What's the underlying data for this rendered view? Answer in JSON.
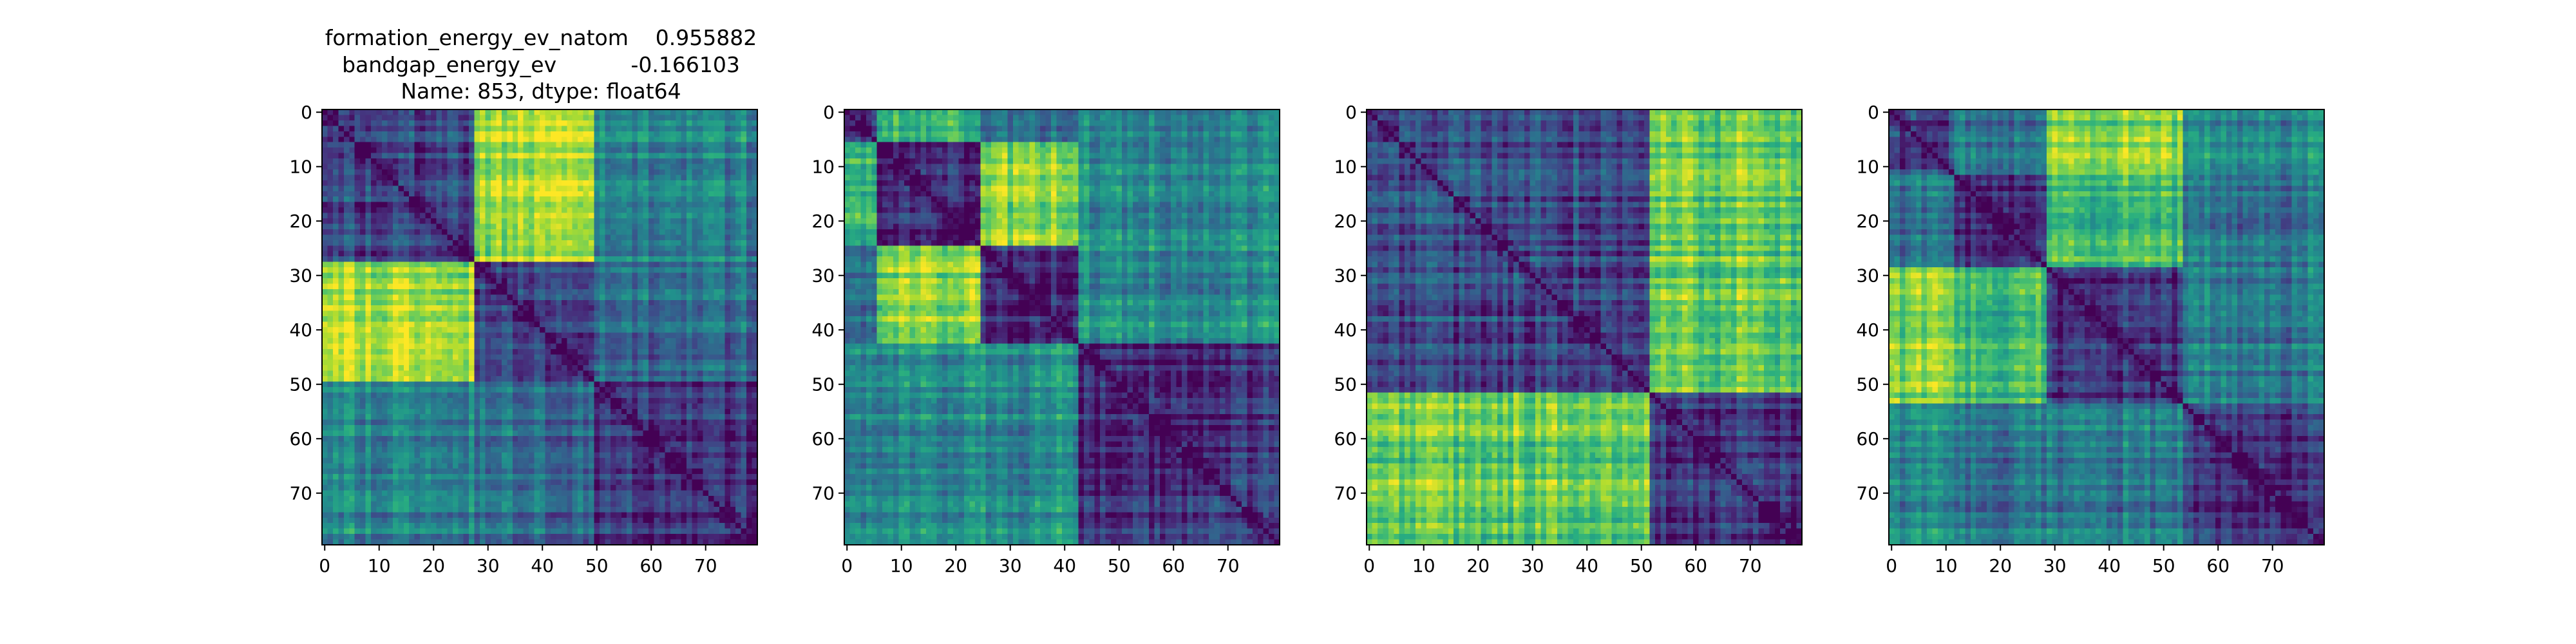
{
  "figure": {
    "title_lines": [
      "formation_energy_ev_natom    0.955882",
      "bandgap_energy_ev           -0.166103",
      "Name: 853, dtype: float64"
    ]
  },
  "colormap": [
    "#440154",
    "#472d7b",
    "#3b528b",
    "#2c728e",
    "#21918c",
    "#28ae80",
    "#5ec962",
    "#addc30",
    "#fde725"
  ],
  "chart_data": [
    {
      "type": "heatmap",
      "size": 80,
      "value_range": [
        0,
        1
      ],
      "cluster_boundaries": [
        0,
        28,
        50,
        80
      ],
      "cluster_block_levels": [
        [
          0.2,
          0.85,
          0.45
        ],
        [
          0.85,
          0.15,
          0.35
        ],
        [
          0.45,
          0.35,
          0.15
        ]
      ],
      "xticks": [
        0,
        10,
        20,
        30,
        40,
        50,
        60,
        70
      ],
      "yticks": [
        0,
        10,
        20,
        30,
        40,
        50,
        60,
        70
      ],
      "title": ""
    },
    {
      "type": "heatmap",
      "size": 80,
      "value_range": [
        0,
        1
      ],
      "cluster_boundaries": [
        0,
        6,
        25,
        43,
        80
      ],
      "cluster_block_levels": [
        [
          0.2,
          0.7,
          0.4,
          0.5
        ],
        [
          0.7,
          0.15,
          0.85,
          0.5
        ],
        [
          0.4,
          0.85,
          0.15,
          0.5
        ],
        [
          0.5,
          0.5,
          0.5,
          0.15
        ]
      ],
      "xticks": [
        0,
        10,
        20,
        30,
        40,
        50,
        60,
        70
      ],
      "yticks": [
        0,
        10,
        20,
        30,
        40,
        50,
        60,
        70
      ],
      "title": ""
    },
    {
      "type": "heatmap",
      "size": 80,
      "value_range": [
        0,
        1
      ],
      "cluster_boundaries": [
        0,
        52,
        80
      ],
      "cluster_block_levels": [
        [
          0.22,
          0.75
        ],
        [
          0.75,
          0.15
        ]
      ],
      "xticks": [
        0,
        10,
        20,
        30,
        40,
        50,
        60,
        70
      ],
      "yticks": [
        0,
        10,
        20,
        30,
        40,
        50,
        60,
        70
      ],
      "title": ""
    },
    {
      "type": "heatmap",
      "size": 80,
      "value_range": [
        0,
        1
      ],
      "cluster_boundaries": [
        0,
        12,
        29,
        54,
        80
      ],
      "cluster_block_levels": [
        [
          0.2,
          0.35,
          0.8,
          0.45
        ],
        [
          0.35,
          0.15,
          0.7,
          0.4
        ],
        [
          0.8,
          0.7,
          0.15,
          0.4
        ],
        [
          0.45,
          0.4,
          0.4,
          0.15
        ]
      ],
      "xticks": [
        0,
        10,
        20,
        30,
        40,
        50,
        60,
        70
      ],
      "yticks": [
        0,
        10,
        20,
        30,
        40,
        50,
        60,
        70
      ],
      "title": ""
    }
  ]
}
